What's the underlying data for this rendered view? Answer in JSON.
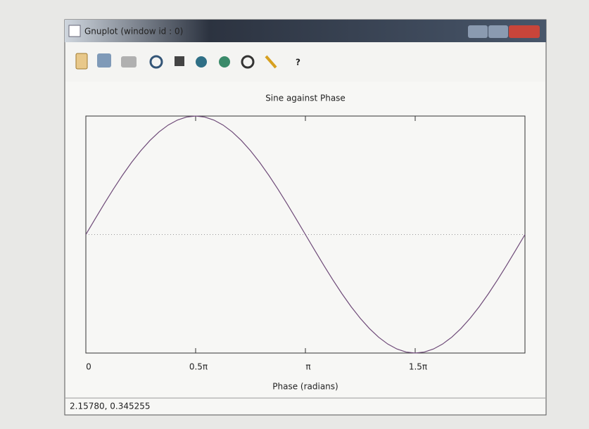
{
  "window": {
    "title": "Gnuplot (window id : 0)",
    "status": "2.15780, 0.345255"
  },
  "chart_data": {
    "type": "line",
    "title": "Sine against Phase",
    "x_label": "Phase (radians)",
    "x": [
      0,
      0.1309,
      0.2618,
      0.3927,
      0.5236,
      0.6545,
      0.7854,
      0.9163,
      1.0472,
      1.1781,
      1.309,
      1.4399,
      1.5708,
      1.7017,
      1.8326,
      1.9635,
      2.0944,
      2.2253,
      2.3562,
      2.4871,
      2.618,
      2.7489,
      2.8798,
      3.0107,
      3.1416,
      3.2725,
      3.4034,
      3.5343,
      3.6652,
      3.7961,
      3.927,
      4.0579,
      4.1888,
      4.3197,
      4.4506,
      4.5815,
      4.7124,
      4.8433,
      4.9742,
      5.1051,
      5.236,
      5.3669,
      5.4978,
      5.6287,
      5.7596,
      5.8905,
      6.0214,
      6.1523,
      6.2832
    ],
    "series": [
      {
        "color": "#6e4a78",
        "values": [
          0,
          0.1305,
          0.2588,
          0.3827,
          0.5,
          0.6088,
          0.7071,
          0.7934,
          0.866,
          0.9239,
          0.9659,
          0.9914,
          1,
          0.9914,
          0.9659,
          0.9239,
          0.866,
          0.7934,
          0.7071,
          0.6088,
          0.5,
          0.3827,
          0.2588,
          0.1305,
          0,
          -0.1305,
          -0.2588,
          -0.3827,
          -0.5,
          -0.6088,
          -0.7071,
          -0.7934,
          -0.866,
          -0.9239,
          -0.9659,
          -0.9914,
          -1,
          -0.9914,
          -0.9659,
          -0.9239,
          -0.866,
          -0.7934,
          -0.7071,
          -0.6088,
          -0.5,
          -0.3827,
          -0.2588,
          -0.1305,
          0
        ]
      }
    ],
    "xlim": [
      0,
      6.2832
    ],
    "ylim": [
      -1,
      1
    ],
    "xticks": [
      0,
      {
        "value": 1.5708,
        "label": "0.5π"
      },
      {
        "value": 3.1416,
        "label": "π"
      },
      {
        "value": 4.7124,
        "label": "1.5π"
      }
    ],
    "zero_line": true
  }
}
